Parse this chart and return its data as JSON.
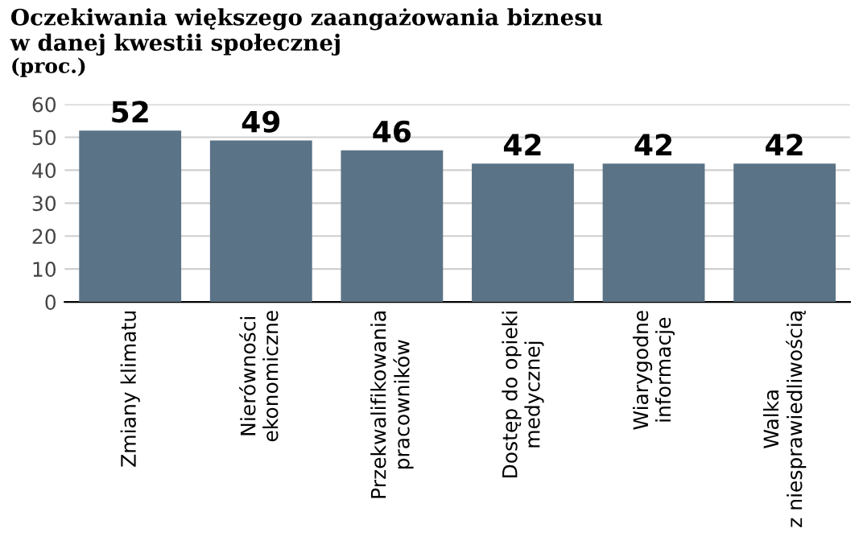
{
  "chart_data": {
    "type": "bar",
    "title": "Oczekiwania większego zaangażowania biznesu\nw danej kwestii społecznej",
    "subtitle": "(proc.)",
    "categories": [
      "Zmiany klimatu",
      "Nierówności\nekonomiczne",
      "Przekwalifikowania\npracowników",
      "Dostęp do opieki\nmedycznej",
      "Wiarygodne\ninformacje",
      "Walka\nz niesprawiedliwością"
    ],
    "values": [
      52,
      49,
      46,
      42,
      42,
      42
    ],
    "color": "#5a7386",
    "ylim": [
      0,
      60
    ],
    "yticks": [
      0,
      10,
      20,
      30,
      40,
      50,
      60
    ],
    "grid": "y",
    "data_labels": true
  }
}
